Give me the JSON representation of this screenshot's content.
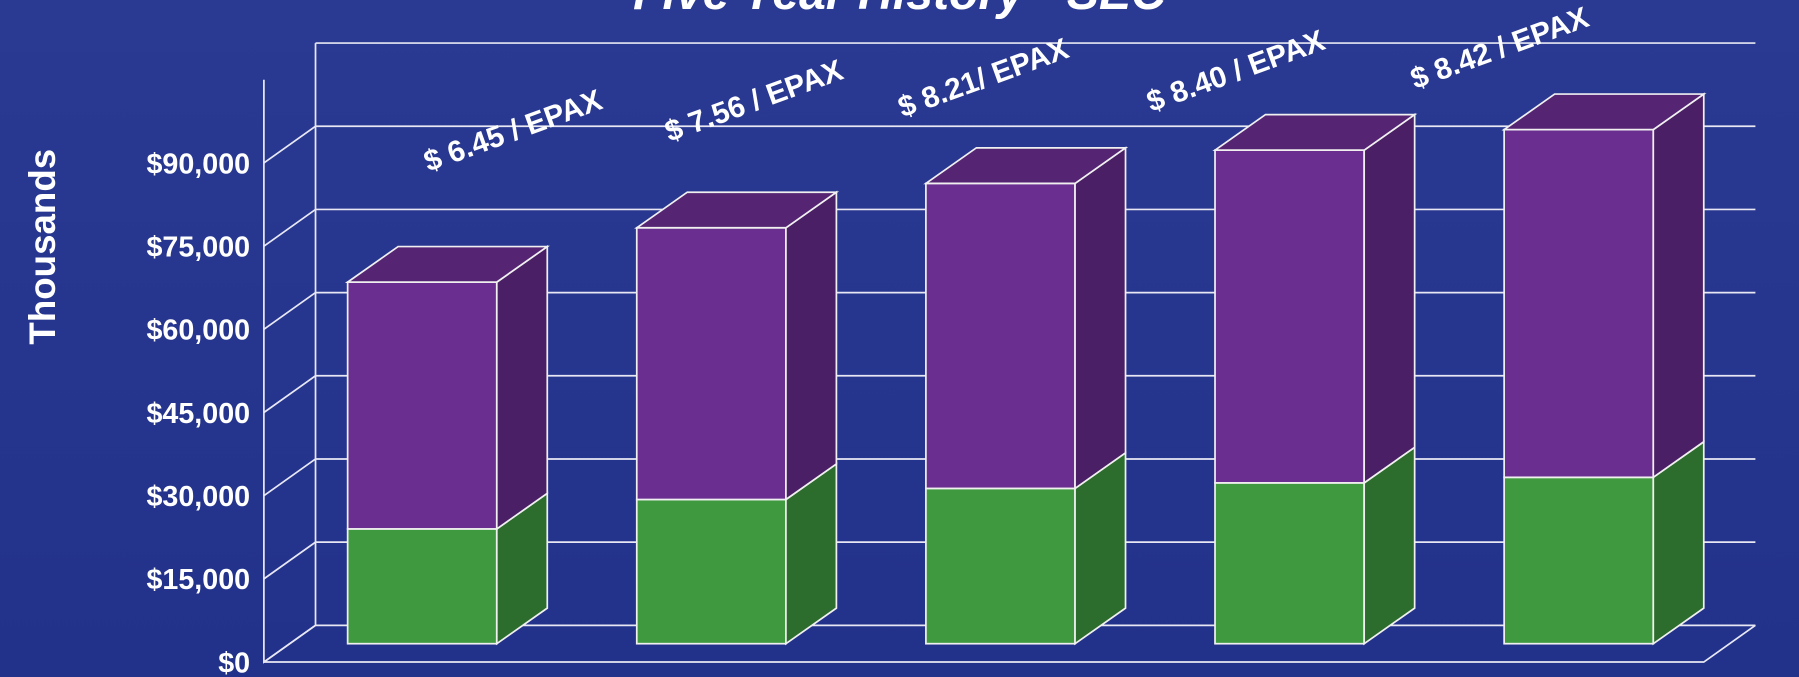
{
  "chart_data": {
    "type": "bar3d_stacked",
    "title": "Five Year History - SEC",
    "y_label": "Thousands",
    "categories": [
      null,
      null,
      null,
      null,
      null
    ],
    "series": [
      {
        "color": "#3f9a3f",
        "values": [
          20700,
          26000,
          28000,
          29000,
          30000
        ]
      },
      {
        "color": "#6a2d90",
        "values": [
          44500,
          49000,
          55000,
          60000,
          62700
        ]
      }
    ],
    "annotations": [
      "$ 6.45 / EPAX",
      "$ 7.56 / EPAX",
      "$ 8.21/ EPAX",
      "$ 8.40 /  EPAX",
      "$ 8.42 / EPAX"
    ],
    "ylim": [
      0,
      105000
    ],
    "yticks": [
      {
        "value": 0,
        "label": "$0"
      },
      {
        "value": 15000,
        "label": "$15,000"
      },
      {
        "value": 30000,
        "label": "$30,000"
      },
      {
        "value": 45000,
        "label": "$45,000"
      },
      {
        "value": 60000,
        "label": "$60,000"
      },
      {
        "value": 75000,
        "label": "$75,000"
      },
      {
        "value": 90000,
        "label": "$90,000"
      }
    ],
    "grid": true
  }
}
